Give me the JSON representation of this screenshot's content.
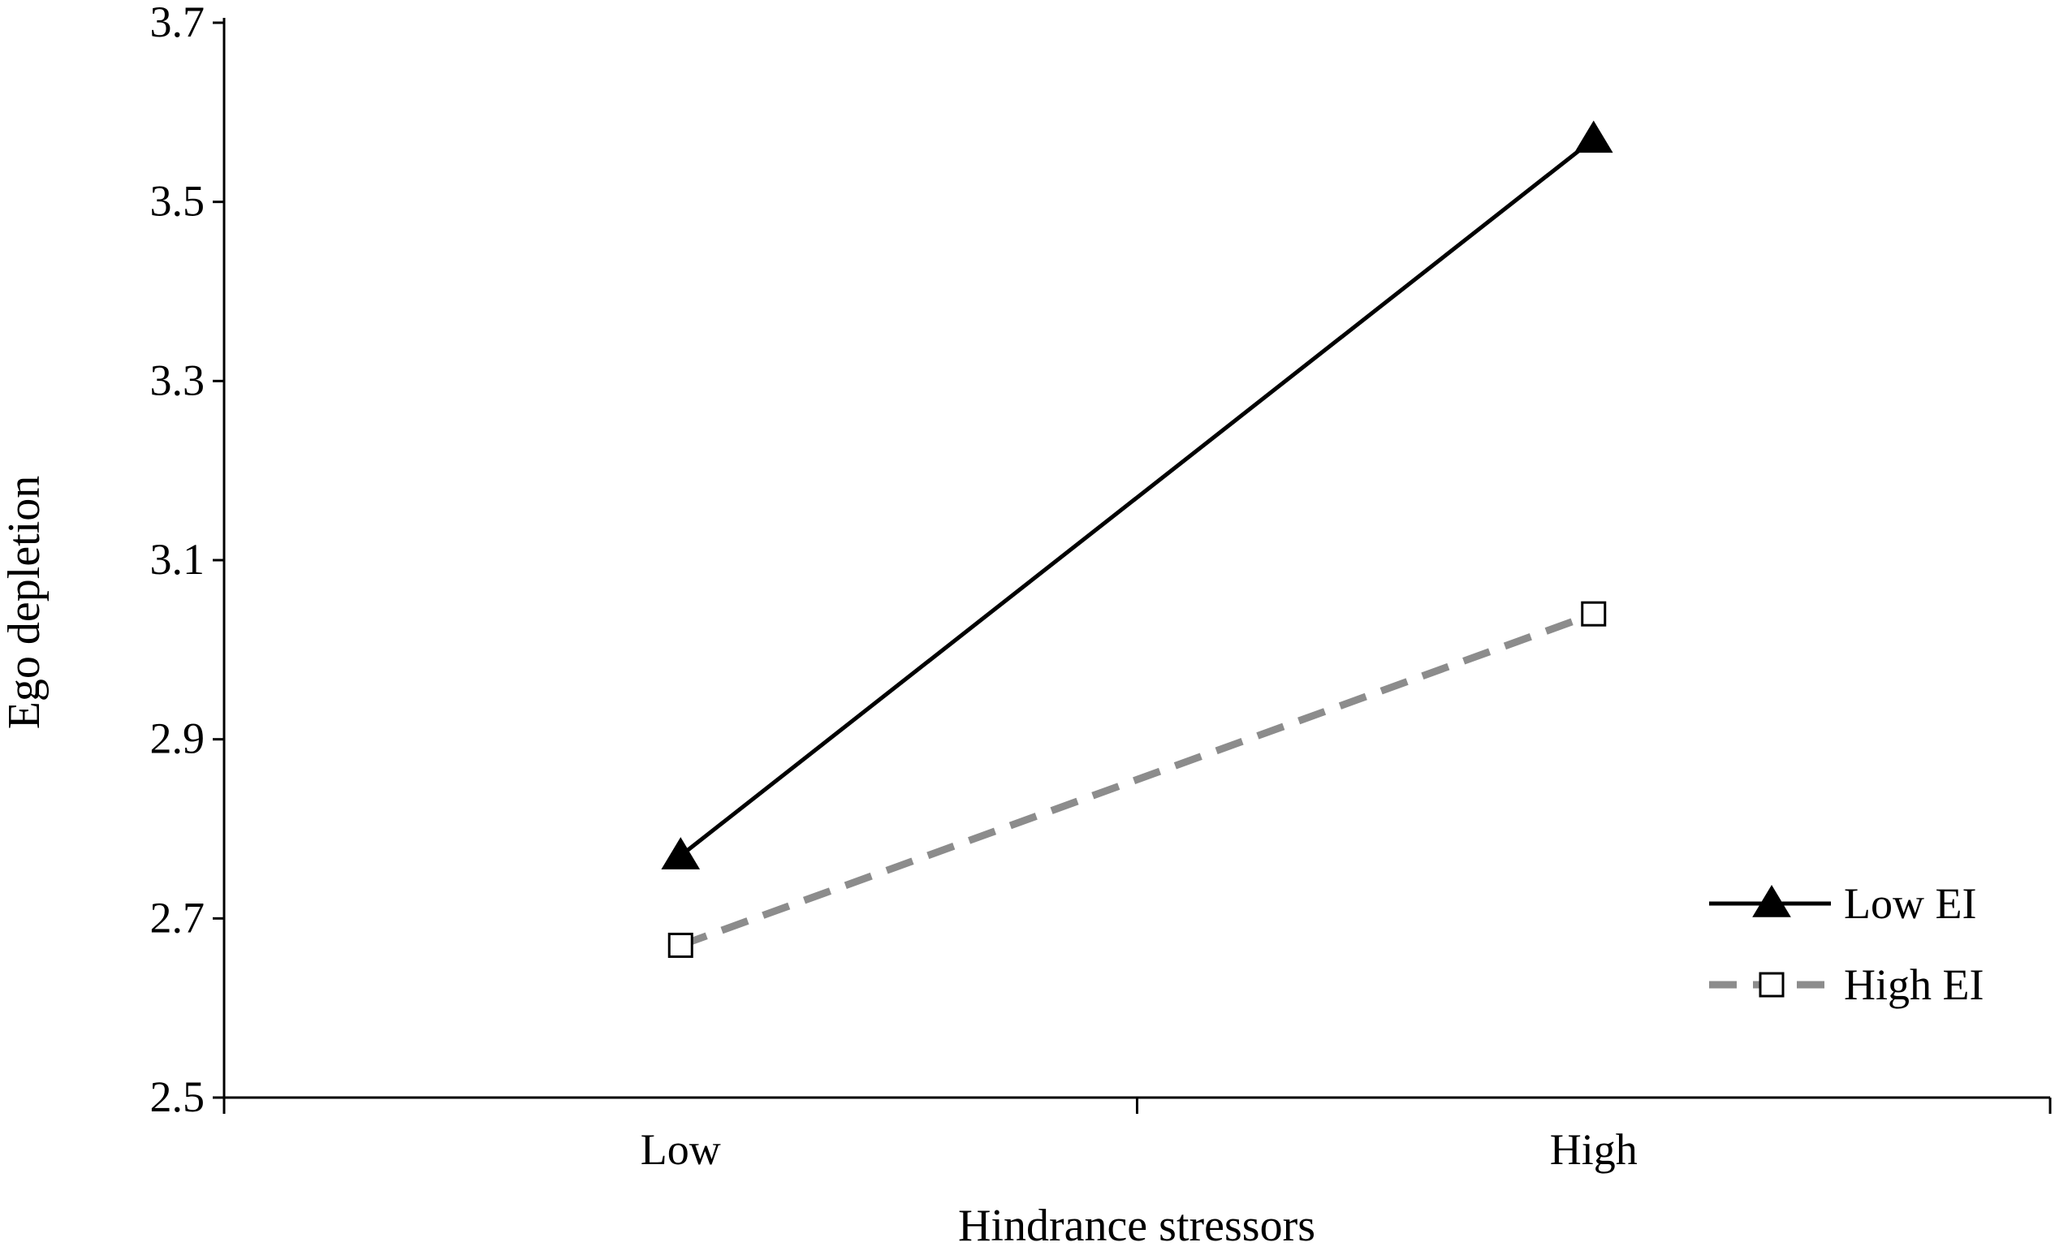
{
  "chart_data": {
    "type": "line",
    "title": "",
    "xlabel": "Hindrance stressors",
    "ylabel": "Ego depletion",
    "categories": [
      "Low",
      "High"
    ],
    "ylim": [
      2.5,
      3.7
    ],
    "yticks": [
      "2.5",
      "2.7",
      "2.9",
      "3.1",
      "3.3",
      "3.5",
      "3.7"
    ],
    "grid": false,
    "legend_position": "right",
    "series": [
      {
        "name": "Low EI",
        "values": [
          2.77,
          3.57
        ],
        "color": "#000000",
        "line_style": "solid",
        "marker": "filled-triangle"
      },
      {
        "name": "High EI",
        "values": [
          2.67,
          3.04
        ],
        "color": "#8c8c8c",
        "line_style": "dashed",
        "marker": "open-square"
      }
    ]
  }
}
